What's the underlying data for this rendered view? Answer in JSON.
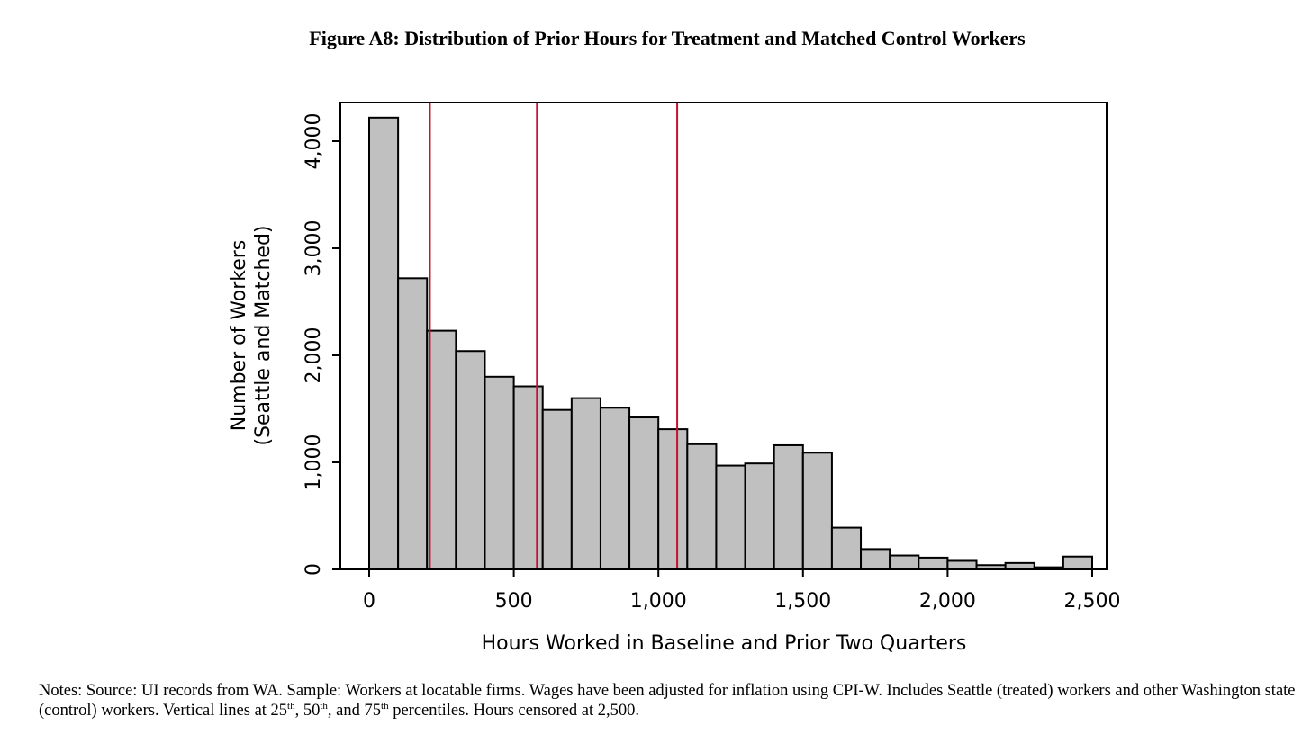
{
  "figure": {
    "title": "Figure A8: Distribution of Prior Hours for Treatment and Matched Control Workers"
  },
  "chart_data": {
    "type": "bar",
    "title": "Figure A8: Distribution of Prior Hours for Treatment and Matched Control Workers",
    "xlabel": "Hours Worked in Baseline and Prior Two Quarters",
    "ylabel_line1": "Number of Workers",
    "ylabel_line2": "(Seattle and Matched)",
    "bin_width": 100,
    "bin_starts": [
      0,
      100,
      200,
      300,
      400,
      500,
      600,
      700,
      800,
      900,
      1000,
      1100,
      1200,
      1300,
      1400,
      1500,
      1600,
      1700,
      1800,
      1900,
      2000,
      2100,
      2200,
      2300,
      2400
    ],
    "values": [
      4220,
      2720,
      2230,
      2040,
      1800,
      1710,
      1490,
      1600,
      1510,
      1420,
      1310,
      1170,
      970,
      990,
      1160,
      1090,
      390,
      190,
      130,
      110,
      80,
      40,
      60,
      20,
      120
    ],
    "xlim": [
      0,
      2500
    ],
    "ylim": [
      0,
      4200
    ],
    "x_ticks": [
      0,
      500,
      1000,
      1500,
      2000,
      2500
    ],
    "x_tick_labels": [
      "0",
      "500",
      "1,000",
      "1,500",
      "2,000",
      "2,500"
    ],
    "y_ticks": [
      0,
      1000,
      2000,
      3000,
      4000
    ],
    "y_tick_labels": [
      "0",
      "1,000",
      "2,000",
      "3,000",
      "4,000"
    ],
    "percentile_lines": [
      210,
      580,
      1065
    ],
    "bar_color": "#c0c0c0",
    "line_color": "#c8102e",
    "grid": false,
    "legend": "none"
  },
  "notes": {
    "part1": "Notes: Source: UI records from WA. Sample: Workers at locatable firms.  Wages have been adjusted for inflation using CPI-W. Includes Seattle (treated) workers and other Washington state (control) workers. Vertical lines at 25",
    "sup1": "th",
    "part2": ", 50",
    "sup2": "th",
    "part3": ", and 75",
    "sup3": "th",
    "part4": " percentiles. Hours censored at 2,500."
  }
}
